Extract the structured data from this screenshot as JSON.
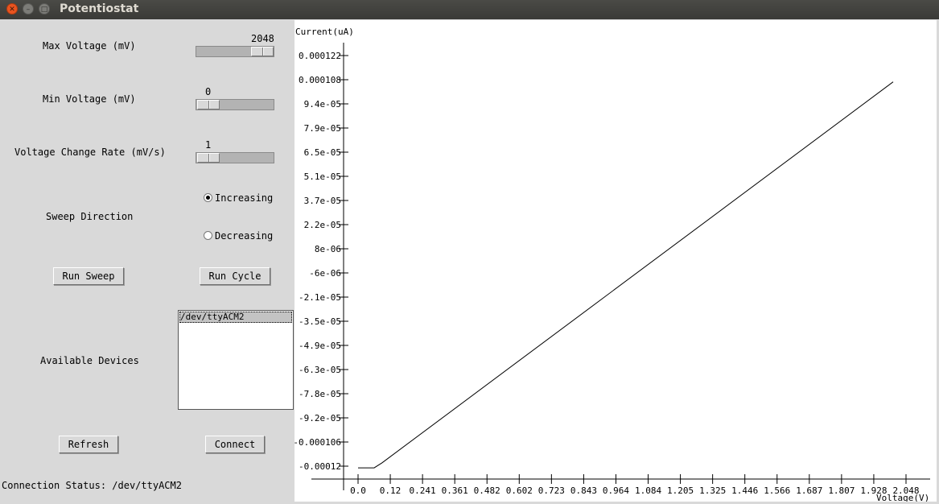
{
  "window": {
    "title": "Potentiostat"
  },
  "controls": {
    "max_voltage": {
      "label": "Max Voltage (mV)",
      "value": "2048",
      "position": 1.0
    },
    "min_voltage": {
      "label": "Min Voltage (mV)",
      "value": "0",
      "position": 0.0
    },
    "rate": {
      "label": "Voltage Change Rate (mV/s)",
      "value": "1",
      "position": 0.0
    },
    "sweep_direction": {
      "label": "Sweep Direction",
      "options": [
        {
          "label": "Increasing",
          "selected": true
        },
        {
          "label": "Decreasing",
          "selected": false
        }
      ]
    },
    "run_sweep_label": "Run Sweep",
    "run_cycle_label": "Run Cycle",
    "devices": {
      "label": "Available Devices",
      "items": [
        "/dev/ttyACM2"
      ]
    },
    "refresh_label": "Refresh",
    "connect_label": "Connect",
    "status": "Connection Status: /dev/ttyACM2"
  },
  "chart_data": {
    "type": "line",
    "ylabel": "Current(uA)",
    "xlabel": "Voltage(V)",
    "x_ticks": [
      "0.0",
      "0.12",
      "0.241",
      "0.361",
      "0.482",
      "0.602",
      "0.723",
      "0.843",
      "0.964",
      "1.084",
      "1.205",
      "1.325",
      "1.446",
      "1.566",
      "1.687",
      "1.807",
      "1.928",
      "2.048"
    ],
    "y_ticks": [
      "0.000122",
      "0.000108",
      "9.4e-05",
      "7.9e-05",
      "6.5e-05",
      "5.1e-05",
      "3.7e-05",
      "2.2e-05",
      "8e-06",
      "-6e-06",
      "-2.1e-05",
      "-3.5e-05",
      "-4.9e-05",
      "-6.3e-05",
      "-7.8e-05",
      "-9.2e-05",
      "-0.000106",
      "-0.00012"
    ],
    "ylim": [
      -0.00012,
      0.000122
    ],
    "xlim": [
      0.0,
      2.048
    ],
    "series": [
      {
        "x": [
          0.0,
          0.06,
          0.09,
          2.0
        ],
        "y": [
          -0.000121,
          -0.000121,
          -0.000118,
          0.0001065
        ]
      }
    ]
  }
}
